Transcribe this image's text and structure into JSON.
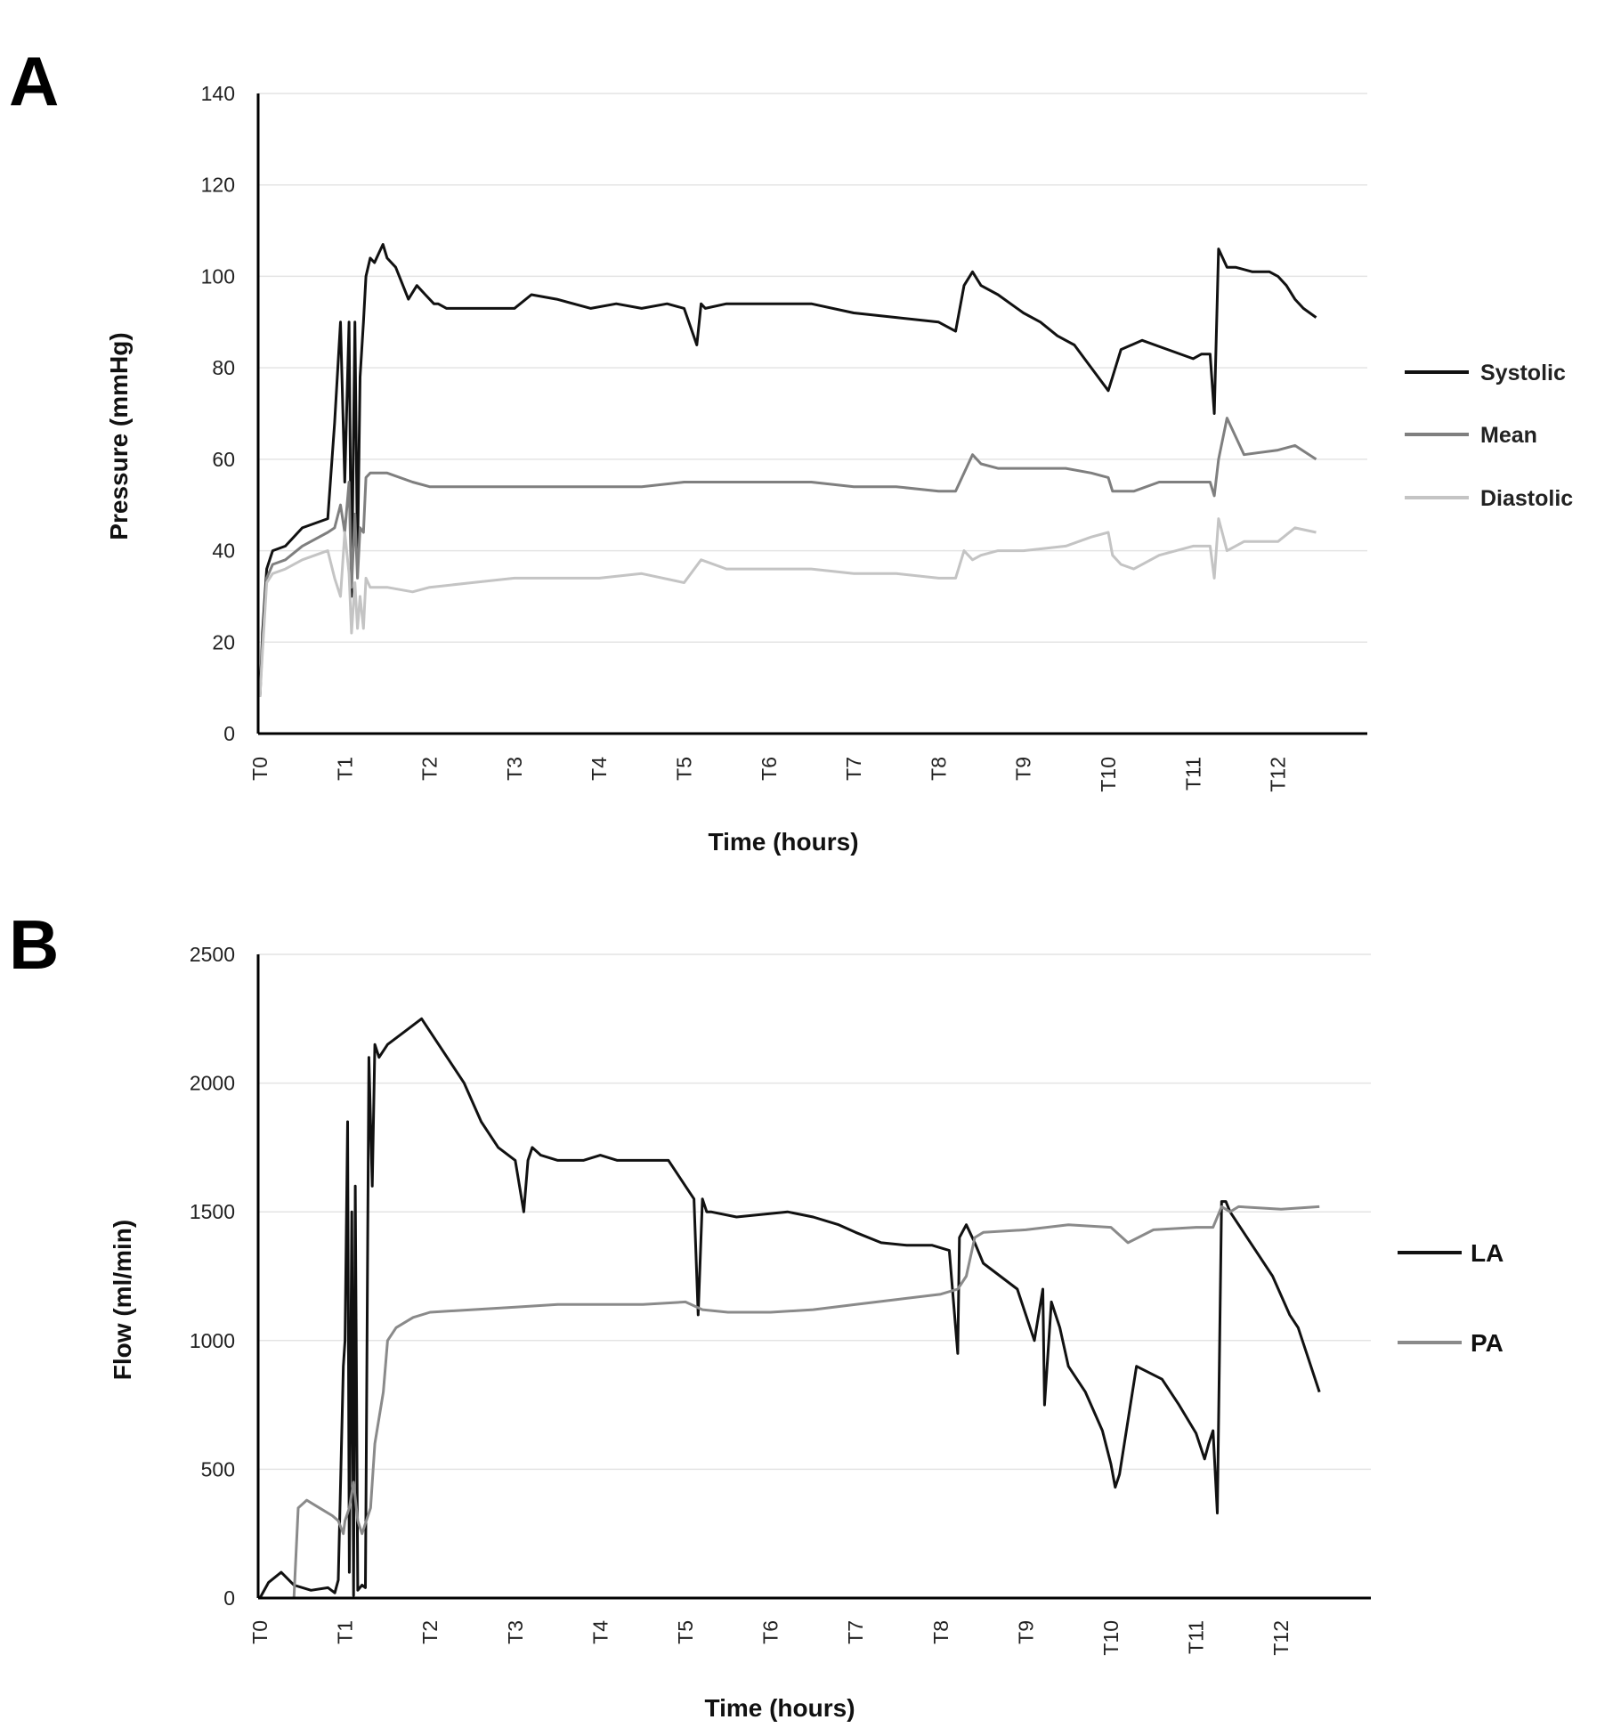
{
  "colors": {
    "systolic": "#111111",
    "mean": "#7f7f7f",
    "diastolic": "#c4c4c4",
    "la": "#111111",
    "pa": "#8a8a8a"
  },
  "chart_data": [
    {
      "panel": "A",
      "type": "line",
      "title": "",
      "xlabel": "Time (hours)",
      "ylabel": "Pressure (mmHg)",
      "ylim": [
        0,
        140
      ],
      "yticks": [
        0,
        20,
        40,
        60,
        80,
        100,
        120,
        140
      ],
      "xlim": [
        0,
        13
      ],
      "xticks": [
        "T0",
        "T1",
        "T2",
        "T3",
        "T4",
        "T5",
        "T6",
        "T7",
        "T8",
        "T9",
        "T10",
        "T11",
        "T12"
      ],
      "grid": true,
      "legend_position": "right",
      "series": [
        {
          "name": "Systolic",
          "color": "#111111",
          "x": [
            0,
            0.03,
            0.08,
            0.15,
            0.3,
            0.5,
            0.8,
            0.88,
            0.95,
            1.0,
            1.05,
            1.08,
            1.12,
            1.15,
            1.18,
            1.22,
            1.25,
            1.3,
            1.35,
            1.4,
            1.45,
            1.5,
            1.6,
            1.75,
            1.85,
            1.95,
            2.05,
            2.1,
            2.2,
            2.4,
            2.6,
            2.8,
            3.0,
            3.2,
            3.5,
            3.9,
            4.2,
            4.5,
            4.8,
            5.0,
            5.15,
            5.2,
            5.25,
            5.5,
            6.0,
            6.5,
            7.0,
            7.5,
            8.0,
            8.2,
            8.3,
            8.4,
            8.5,
            8.7,
            9.0,
            9.2,
            9.4,
            9.6,
            9.8,
            10.0,
            10.05,
            10.15,
            10.4,
            10.7,
            11.0,
            11.1,
            11.2,
            11.25,
            11.3,
            11.4,
            11.5,
            11.7,
            11.9,
            12.0,
            12.1,
            12.2,
            12.3,
            12.45
          ],
          "y": [
            8,
            22,
            36,
            40,
            41,
            45,
            47,
            68,
            90,
            55,
            90,
            30,
            90,
            38,
            78,
            90,
            100,
            104,
            103,
            105,
            107,
            104,
            102,
            95,
            98,
            96,
            94,
            94,
            93,
            93,
            93,
            93,
            93,
            96,
            95,
            93,
            94,
            93,
            94,
            93,
            85,
            94,
            93,
            94,
            94,
            94,
            92,
            91,
            90,
            88,
            98,
            101,
            98,
            96,
            92,
            90,
            87,
            85,
            80,
            75,
            78,
            84,
            86,
            84,
            82,
            83,
            83,
            70,
            106,
            102,
            102,
            101,
            101,
            100,
            98,
            95,
            93,
            91
          ]
        },
        {
          "name": "Mean",
          "color": "#7f7f7f",
          "x": [
            0,
            0.03,
            0.08,
            0.15,
            0.3,
            0.5,
            0.8,
            0.88,
            0.95,
            1.0,
            1.05,
            1.08,
            1.12,
            1.15,
            1.18,
            1.22,
            1.25,
            1.3,
            1.5,
            1.8,
            2.0,
            2.5,
            3.0,
            3.5,
            4.0,
            4.5,
            5.0,
            5.5,
            6.0,
            6.5,
            7.0,
            7.5,
            8.0,
            8.2,
            8.3,
            8.4,
            8.5,
            8.7,
            9.0,
            9.5,
            9.8,
            10.0,
            10.05,
            10.3,
            10.6,
            11.0,
            11.2,
            11.25,
            11.3,
            11.4,
            11.6,
            12.0,
            12.2,
            12.45
          ],
          "y": [
            8,
            20,
            34,
            37,
            38,
            41,
            44,
            45,
            50,
            44,
            55,
            32,
            48,
            34,
            45,
            44,
            56,
            57,
            57,
            55,
            54,
            54,
            54,
            54,
            54,
            54,
            55,
            55,
            55,
            55,
            54,
            54,
            53,
            53,
            57,
            61,
            59,
            58,
            58,
            58,
            57,
            56,
            53,
            53,
            55,
            55,
            55,
            52,
            60,
            69,
            61,
            62,
            63,
            60
          ]
        },
        {
          "name": "Diastolic",
          "color": "#c4c4c4",
          "x": [
            0,
            0.03,
            0.08,
            0.15,
            0.3,
            0.5,
            0.8,
            0.88,
            0.95,
            1.0,
            1.05,
            1.08,
            1.12,
            1.15,
            1.18,
            1.22,
            1.25,
            1.3,
            1.5,
            1.8,
            2.0,
            2.5,
            3.0,
            3.5,
            4.0,
            4.5,
            5.0,
            5.2,
            5.5,
            6.0,
            6.5,
            7.0,
            7.5,
            8.0,
            8.2,
            8.3,
            8.4,
            8.5,
            8.7,
            9.0,
            9.5,
            9.8,
            10.0,
            10.05,
            10.15,
            10.3,
            10.6,
            11.0,
            11.2,
            11.25,
            11.3,
            11.4,
            11.6,
            12.0,
            12.2,
            12.45
          ],
          "y": [
            8,
            18,
            33,
            35,
            36,
            38,
            40,
            34,
            30,
            44,
            35,
            22,
            33,
            23,
            30,
            23,
            34,
            32,
            32,
            31,
            32,
            33,
            34,
            34,
            34,
            35,
            33,
            38,
            36,
            36,
            36,
            35,
            35,
            34,
            34,
            40,
            38,
            39,
            40,
            40,
            41,
            43,
            44,
            39,
            37,
            36,
            39,
            41,
            41,
            34,
            47,
            40,
            42,
            42,
            45,
            44
          ]
        }
      ]
    },
    {
      "panel": "B",
      "type": "line",
      "title": "",
      "xlabel": "Time (hours)",
      "ylabel": "Flow (ml/min)",
      "ylim": [
        0,
        2500
      ],
      "yticks": [
        0,
        500,
        1000,
        1500,
        2000,
        2500
      ],
      "xlim": [
        0,
        13
      ],
      "xticks": [
        "T0",
        "T1",
        "T2",
        "T3",
        "T4",
        "T5",
        "T6",
        "T7",
        "T8",
        "T9",
        "T10",
        "T11",
        "T12"
      ],
      "grid": true,
      "legend_position": "right",
      "series": [
        {
          "name": "LA",
          "color": "#111111",
          "x": [
            0,
            0.1,
            0.25,
            0.4,
            0.6,
            0.8,
            0.88,
            0.92,
            0.98,
            1.0,
            1.03,
            1.05,
            1.08,
            1.1,
            1.12,
            1.15,
            1.2,
            1.24,
            1.28,
            1.32,
            1.35,
            1.4,
            1.5,
            1.7,
            1.9,
            2.0,
            2.2,
            2.4,
            2.6,
            2.8,
            3.0,
            3.1,
            3.15,
            3.2,
            3.3,
            3.5,
            3.8,
            4.0,
            4.2,
            4.4,
            4.6,
            4.8,
            5.0,
            5.1,
            5.15,
            5.2,
            5.25,
            5.3,
            5.6,
            5.9,
            6.2,
            6.5,
            6.8,
            7.0,
            7.3,
            7.6,
            7.9,
            8.1,
            8.2,
            8.22,
            8.3,
            8.4,
            8.5,
            8.7,
            8.9,
            9.0,
            9.1,
            9.2,
            9.22,
            9.3,
            9.4,
            9.5,
            9.7,
            9.9,
            10.0,
            10.05,
            10.1,
            10.3,
            10.6,
            10.8,
            11.0,
            11.1,
            11.15,
            11.2,
            11.25,
            11.3,
            11.35,
            11.4,
            11.5,
            11.7,
            11.9,
            12.1,
            12.2,
            12.3,
            12.45
          ],
          "y": [
            0,
            60,
            100,
            50,
            30,
            40,
            20,
            70,
            900,
            1000,
            1850,
            100,
            1500,
            10,
            1600,
            30,
            50,
            40,
            2100,
            1600,
            2150,
            2100,
            2150,
            2200,
            2250,
            2200,
            2100,
            2000,
            1850,
            1750,
            1700,
            1500,
            1700,
            1750,
            1720,
            1700,
            1700,
            1720,
            1700,
            1700,
            1700,
            1700,
            1600,
            1550,
            1100,
            1550,
            1500,
            1500,
            1480,
            1490,
            1500,
            1480,
            1450,
            1420,
            1380,
            1370,
            1370,
            1350,
            950,
            1400,
            1450,
            1380,
            1300,
            1250,
            1200,
            1100,
            1000,
            1200,
            750,
            1150,
            1050,
            900,
            800,
            650,
            520,
            430,
            480,
            900,
            850,
            750,
            640,
            540,
            600,
            650,
            330,
            1540,
            1540,
            1500,
            1450,
            1350,
            1250,
            1100,
            1050,
            950,
            800
          ]
        },
        {
          "name": "PA",
          "color": "#8a8a8a",
          "x": [
            0,
            0.4,
            0.45,
            0.55,
            0.7,
            0.85,
            0.92,
            0.98,
            1.0,
            1.05,
            1.1,
            1.15,
            1.2,
            1.3,
            1.35,
            1.45,
            1.5,
            1.6,
            1.8,
            2.0,
            2.5,
            3.0,
            3.5,
            4.0,
            4.5,
            5.0,
            5.2,
            5.5,
            6.0,
            6.5,
            7.0,
            7.5,
            8.0,
            8.2,
            8.3,
            8.4,
            8.5,
            9.0,
            9.5,
            10.0,
            10.2,
            10.5,
            11.0,
            11.2,
            11.3,
            11.4,
            11.5,
            12.0,
            12.45
          ],
          "y": [
            0,
            0,
            350,
            380,
            350,
            320,
            300,
            250,
            300,
            350,
            450,
            300,
            250,
            350,
            600,
            800,
            1000,
            1050,
            1090,
            1110,
            1120,
            1130,
            1140,
            1140,
            1140,
            1150,
            1120,
            1110,
            1110,
            1120,
            1140,
            1160,
            1180,
            1200,
            1250,
            1400,
            1420,
            1430,
            1450,
            1440,
            1380,
            1430,
            1440,
            1440,
            1520,
            1500,
            1520,
            1510,
            1520
          ]
        }
      ]
    }
  ]
}
